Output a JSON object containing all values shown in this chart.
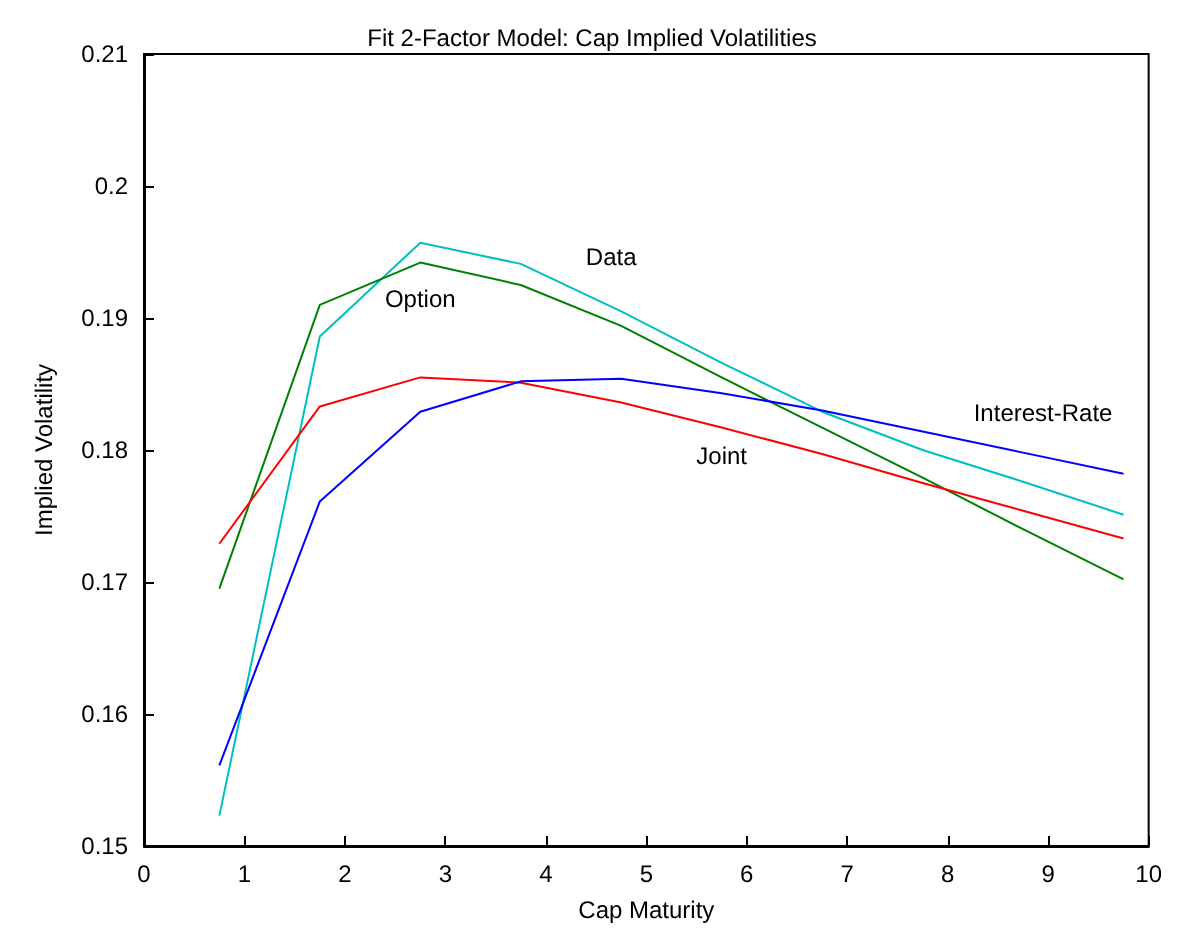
{
  "chart_data": {
    "type": "line",
    "title": "Fit 2-Factor Model: Cap Implied Volatilities",
    "xlabel": "Cap Maturity",
    "ylabel": "Implied Volatility",
    "x": [
      0.75,
      1.75,
      2.75,
      3.75,
      4.75,
      5.75,
      6.75,
      7.75,
      8.75,
      9.75
    ],
    "series": [
      {
        "name": "Data",
        "color": "#00bfbf",
        "values": [
          0.1523,
          0.1886,
          0.1957,
          0.1941,
          0.1905,
          0.1866,
          0.1829,
          0.18,
          0.1776,
          0.1751
        ]
      },
      {
        "name": "Option",
        "color": "#008000",
        "values": [
          0.1695,
          0.191,
          0.1942,
          0.1925,
          0.1894,
          0.1855,
          0.1817,
          0.1779,
          0.174,
          0.1702
        ]
      },
      {
        "name": "Joint",
        "color": "#ff0000",
        "values": [
          0.1729,
          0.1833,
          0.1855,
          0.1851,
          0.1836,
          0.1817,
          0.1797,
          0.1775,
          0.1754,
          0.1733
        ]
      },
      {
        "name": "Interest-Rate",
        "color": "#0000ff",
        "values": [
          0.1561,
          0.1761,
          0.1829,
          0.1852,
          0.1854,
          0.1843,
          0.183,
          0.1814,
          0.1798,
          0.1782
        ]
      }
    ],
    "xlim": [
      0,
      10
    ],
    "xticks": [
      0,
      1,
      2,
      3,
      4,
      5,
      6,
      7,
      8,
      9,
      10
    ],
    "ylim": [
      0.15,
      0.21
    ],
    "yticks": [
      0.15,
      0.16,
      0.17,
      0.18,
      0.19,
      0.2,
      0.21
    ],
    "grid": false,
    "legend": false,
    "marker": "none",
    "line_style": "solid"
  }
}
